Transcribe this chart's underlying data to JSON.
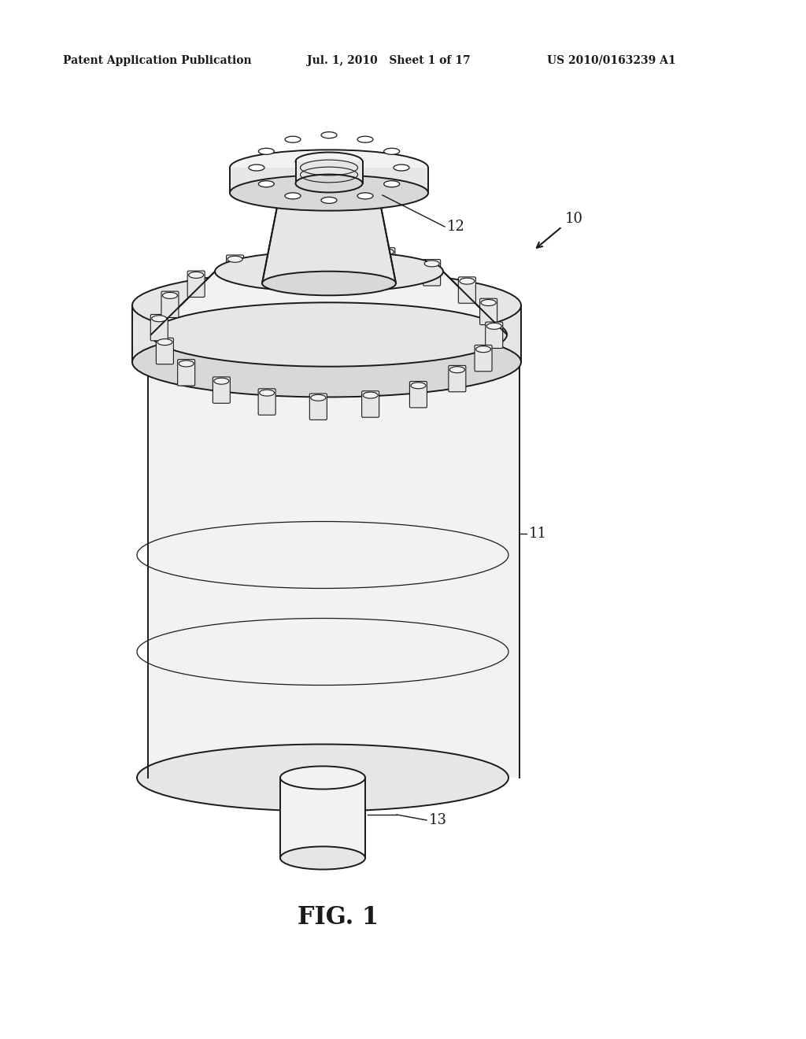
{
  "header_left": "Patent Application Publication",
  "header_mid": "Jul. 1, 2010   Sheet 1 of 17",
  "header_right": "US 2010/0163239 A1",
  "fig_caption": "FIG. 1",
  "label_10": "10",
  "label_11": "11",
  "label_12": "12",
  "label_13": "13",
  "bg_color": "#ffffff",
  "line_color": "#1a1a1a",
  "fill_light": "#f2f2f2",
  "fill_mid": "#e6e6e6",
  "fill_dark": "#d8d8d8",
  "fig_width": 10.24,
  "fig_height": 13.2
}
